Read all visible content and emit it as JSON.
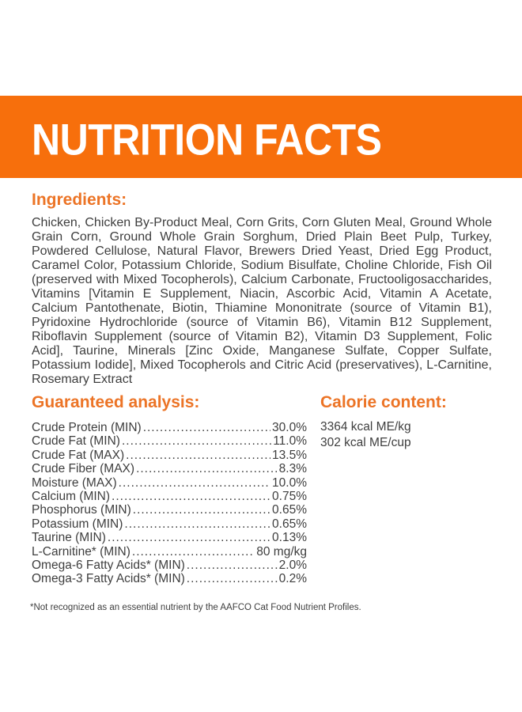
{
  "banner": {
    "title": "NUTRITION FACTS"
  },
  "ingredients": {
    "heading": "Ingredients:",
    "text": "Chicken, Chicken By-Product Meal, Corn Grits, Corn Gluten Meal, Ground Whole Grain Corn, Ground Whole Grain Sorghum, Dried Plain Beet Pulp, Turkey, Powdered Cellulose, Natural Flavor, Brewers Dried Yeast, Dried Egg Product, Caramel Color, Potassium Chloride, Sodium Bisulfate, Choline Chloride, Fish Oil (preserved with Mixed Tocopherols), Calcium Carbonate, Fructooligosaccharides, Vitamins [Vitamin E Supplement, Niacin, Ascorbic Acid, Vitamin A Acetate, Calcium Pantothenate, Biotin, Thiamine Mononitrate (source of Vitamin B1), Pyridoxine Hydrochloride (source of Vitamin B6), Vitamin B12 Supplement, Riboflavin Supplement (source of Vitamin B2), Vitamin D3 Supplement, Folic Acid], Taurine, Minerals [Zinc Oxide, Manganese Sulfate, Copper Sulfate, Potassium Iodide], Mixed Tocopherols and Citric Acid (preservatives), L-Carnitine, Rosemary Extract"
  },
  "guaranteed_analysis": {
    "heading": "Guaranteed analysis:",
    "rows": [
      {
        "label": "Crude Protein (MIN)",
        "value": "30.0%"
      },
      {
        "label": "Crude Fat (MIN)",
        "value": "11.0%"
      },
      {
        "label": "Crude Fat (MAX)",
        "value": "13.5%"
      },
      {
        "label": "Crude Fiber (MAX)",
        "value": "8.3%"
      },
      {
        "label": "Moisture (MAX)",
        "value": "10.0%"
      },
      {
        "label": "Calcium (MIN)",
        "value": "0.75%"
      },
      {
        "label": "Phosphorus (MIN)",
        "value": "0.65%"
      },
      {
        "label": "Potassium (MIN)",
        "value": "0.65%"
      },
      {
        "label": "Taurine (MIN)",
        "value": "0.13%"
      },
      {
        "label": "L-Carnitine* (MIN)",
        "value": "80 mg/kg"
      },
      {
        "label": "Omega-6 Fatty Acids* (MIN)",
        "value": "2.0%"
      },
      {
        "label": "Omega-3 Fatty Acids* (MIN)",
        "value": "0.2%"
      }
    ]
  },
  "calorie_content": {
    "heading": "Calorie content:",
    "lines": [
      "3364 kcal ME/kg",
      "302 kcal ME/cup"
    ]
  },
  "footnote": "*Not recognized as an essential nutrient by the AAFCO Cat Food Nutrient Profiles.",
  "colors": {
    "banner_orange": "#f76f0c",
    "heading_orange": "#ec7426",
    "body_text": "#3e3e3e",
    "banner_text": "#ffffff"
  }
}
